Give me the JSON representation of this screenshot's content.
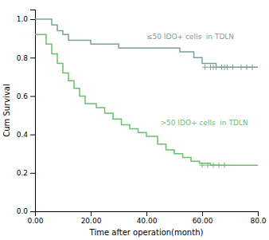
{
  "chart_data": {
    "type": "step",
    "xlabel": "Time after operation(month)",
    "ylabel": "Cum Survival",
    "xlim": [
      0,
      80
    ],
    "ylim": [
      0.0,
      1.05
    ],
    "xticks": [
      {
        "value": 0.0,
        "label": "0.00"
      },
      {
        "value": 20.0,
        "label": "20.00"
      },
      {
        "value": 40.0,
        "label": "40.00"
      },
      {
        "value": 60.0,
        "label": "60.00"
      },
      {
        "value": 80.0,
        "label": "80.0"
      }
    ],
    "yticks": [
      {
        "value": 0.0,
        "label": "0.0"
      },
      0.2,
      0.4,
      0.6,
      0.8,
      {
        "value": 1.0,
        "label": "1.0"
      }
    ],
    "grid": false,
    "series": [
      {
        "color": "#7a9ea0",
        "x": [
          0,
          4,
          6,
          8,
          10,
          12,
          14,
          16,
          18,
          20,
          25,
          30,
          35,
          40,
          45,
          52,
          57,
          60,
          65,
          80
        ],
        "values": [
          1.0,
          1.0,
          0.97,
          0.94,
          0.92,
          0.89,
          0.89,
          0.89,
          0.89,
          0.87,
          0.87,
          0.85,
          0.85,
          0.85,
          0.85,
          0.83,
          0.8,
          0.77,
          0.75,
          0.75
        ],
        "censor_x": [
          61,
          63,
          64,
          65,
          67,
          68,
          69,
          71,
          74,
          76,
          78
        ],
        "censor_y": [
          0.75,
          0.75,
          0.75,
          0.75,
          0.75,
          0.75,
          0.75,
          0.75,
          0.75,
          0.75,
          0.75
        ]
      },
      {
        "color": "#6abf6a",
        "x": [
          0,
          2,
          4,
          6,
          8,
          10,
          12,
          14,
          16,
          18,
          20,
          22,
          25,
          28,
          31,
          34,
          37,
          40,
          44,
          47,
          50,
          53,
          56,
          59,
          63,
          65,
          80
        ],
        "values": [
          0.92,
          0.92,
          0.87,
          0.82,
          0.77,
          0.72,
          0.68,
          0.64,
          0.6,
          0.56,
          0.56,
          0.54,
          0.51,
          0.48,
          0.45,
          0.43,
          0.41,
          0.39,
          0.35,
          0.32,
          0.3,
          0.28,
          0.26,
          0.25,
          0.24,
          0.24,
          0.24
        ],
        "censor_x": [
          60,
          62,
          64,
          66,
          68
        ],
        "censor_y": [
          0.24,
          0.24,
          0.24,
          0.24,
          0.24
        ]
      }
    ],
    "annotations": [
      {
        "text": "≤50 IDO+ cells  in TDLN",
        "x": 40,
        "y": 0.91,
        "color": "#7a9ea0"
      },
      {
        "text": ">50 IDO+ cells  in TDLN",
        "x": 45,
        "y": 0.46,
        "color": "#6abf6a"
      }
    ]
  }
}
